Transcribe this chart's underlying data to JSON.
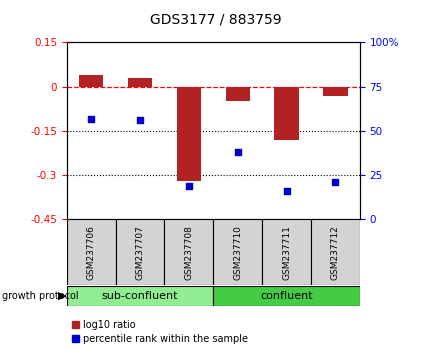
{
  "title": "GDS3177 / 883759",
  "samples": [
    "GSM237706",
    "GSM237707",
    "GSM237708",
    "GSM237710",
    "GSM237711",
    "GSM237712"
  ],
  "log10_ratio": [
    0.04,
    0.03,
    -0.32,
    -0.05,
    -0.18,
    -0.03
  ],
  "percentile_rank": [
    57,
    56,
    19,
    38,
    16,
    21
  ],
  "groups": [
    {
      "label": "sub-confluent",
      "start": 0,
      "end": 3,
      "color": "#90EE90"
    },
    {
      "label": "confluent",
      "start": 3,
      "end": 6,
      "color": "#44CC44"
    }
  ],
  "ylim_left": [
    -0.45,
    0.15
  ],
  "ylim_right": [
    0,
    100
  ],
  "yticks_left": [
    -0.45,
    -0.3,
    -0.15,
    0.0,
    0.15
  ],
  "yticks_right": [
    0,
    25,
    50,
    75,
    100
  ],
  "bar_color": "#B22222",
  "scatter_color": "#0000CD",
  "dotted_lines": [
    -0.15,
    -0.3
  ],
  "plot_bg_color": "#ffffff"
}
